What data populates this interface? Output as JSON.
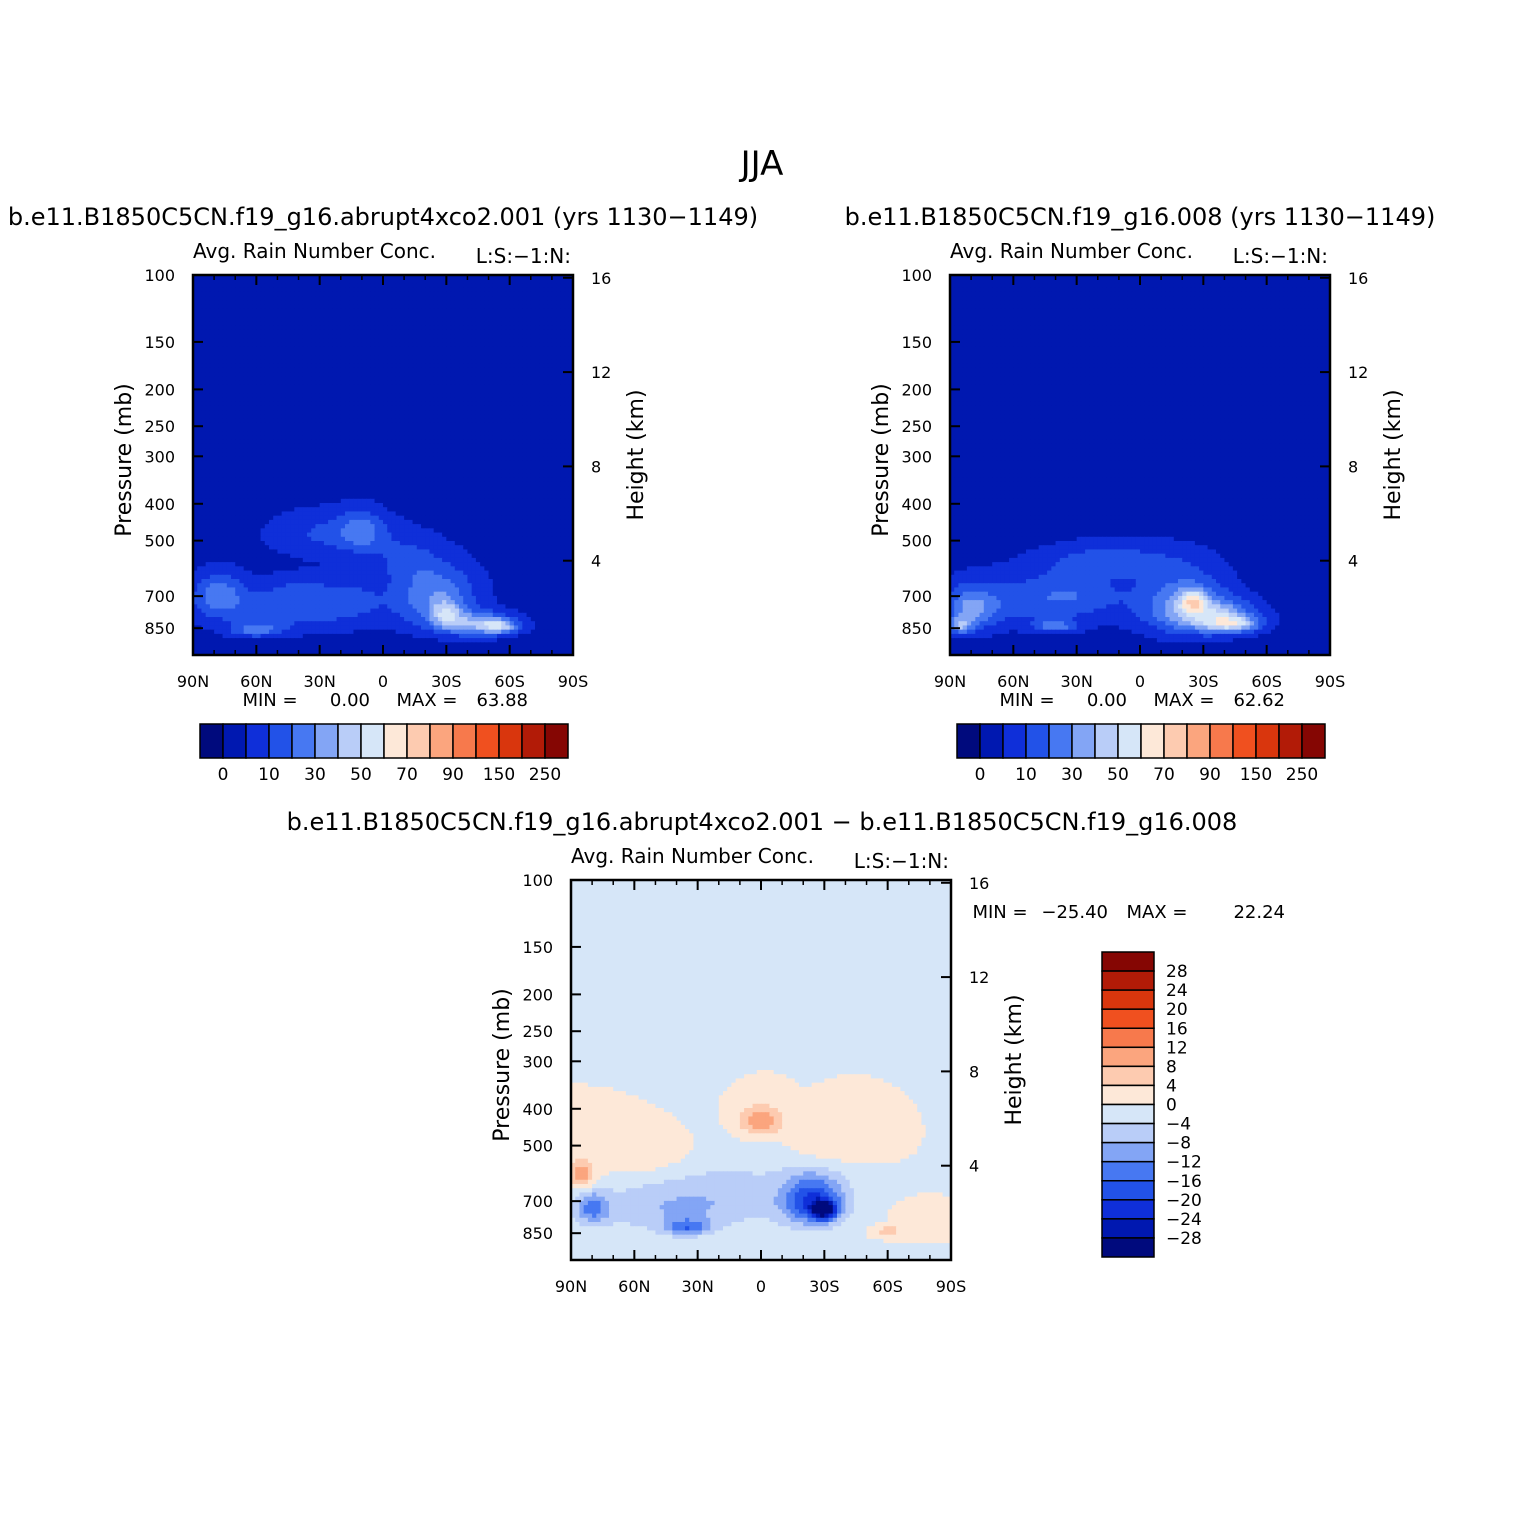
{
  "figure_title": "JJA",
  "chart_data": [
    {
      "type": "heatmap",
      "case_title": "b.e11.B1850C5CN.f19_g16.abrupt4xco2.001 (yrs 1130−1149)",
      "title": "Avg. Rain Number Conc.",
      "units_label": "L:S:−1:N:",
      "xlabel": "",
      "ylabel": "Pressure (mb)",
      "y2label": "Height (km)",
      "x_ticks": [
        "90N",
        "60N",
        "30N",
        "0",
        "30S",
        "60S",
        "90S"
      ],
      "y_ticks": [
        "100",
        "150",
        "200",
        "250",
        "300",
        "400",
        "500",
        "700",
        "850"
      ],
      "y2_ticks": [
        "16",
        "12",
        "8",
        "4"
      ],
      "stats": {
        "min_label": "MIN =",
        "min": "0.00",
        "max_label": "MAX =",
        "max": "63.88"
      },
      "colorbar": {
        "orientation": "horizontal",
        "tick_labels": [
          "0",
          "10",
          "30",
          "50",
          "70",
          "90",
          "150",
          "250"
        ],
        "colors": [
          "#000a7d",
          "#0018b0",
          "#0f2fd9",
          "#2252e8",
          "#4778f2",
          "#83a5f5",
          "#b9cdf8",
          "#d6e6f8",
          "#fde8d8",
          "#fdcbb0",
          "#fba57e",
          "#f7794c",
          "#f0501f",
          "#d9360d",
          "#b21b07",
          "#850603"
        ]
      },
      "background_level": 1,
      "blobs": [
        {
          "lat": 45,
          "p": 760,
          "lat_w": 40,
          "p_w": 110,
          "value": 2.0
        },
        {
          "lat": 78,
          "p": 690,
          "lat_w": 12,
          "p_w": 90,
          "value": 2.7
        },
        {
          "lat": 25,
          "p": 480,
          "lat_w": 30,
          "p_w": 70,
          "value": 1.7
        },
        {
          "lat": 10,
          "p": 470,
          "lat_w": 10,
          "p_w": 60,
          "value": 2.0
        },
        {
          "lat": 40,
          "p": 680,
          "lat_w": 15,
          "p_w": 70,
          "value": 0.9
        },
        {
          "lat": 15,
          "p": 700,
          "lat_w": 15,
          "p_w": 100,
          "value": 1.0
        },
        {
          "lat": -25,
          "p": 700,
          "lat_w": 20,
          "p_w": 140,
          "value": 3.3
        },
        {
          "lat": -45,
          "p": 830,
          "lat_w": 18,
          "p_w": 60,
          "value": 3.8
        },
        {
          "lat": -55,
          "p": 840,
          "lat_w": 8,
          "p_w": 35,
          "value": 3.4
        },
        {
          "lat": -30,
          "p": 780,
          "lat_w": 7,
          "p_w": 60,
          "value": 3.0
        },
        {
          "lat": 60,
          "p": 860,
          "lat_w": 12,
          "p_w": 35,
          "value": 2.5
        },
        {
          "lat": -10,
          "p": 560,
          "lat_w": 15,
          "p_w": 80,
          "value": 1.2
        }
      ]
    },
    {
      "type": "heatmap",
      "case_title": "b.e11.B1850C5CN.f19_g16.008 (yrs 1130−1149)",
      "title": "Avg. Rain Number Conc.",
      "units_label": "L:S:−1:N:",
      "xlabel": "",
      "ylabel": "Pressure (mb)",
      "y2label": "Height (km)",
      "x_ticks": [
        "90N",
        "60N",
        "30N",
        "0",
        "30S",
        "60S",
        "90S"
      ],
      "y_ticks": [
        "100",
        "150",
        "200",
        "250",
        "300",
        "400",
        "500",
        "700",
        "850"
      ],
      "y2_ticks": [
        "16",
        "12",
        "8",
        "4"
      ],
      "stats": {
        "min_label": "MIN =",
        "min": "0.00",
        "max_label": "MAX =",
        "max": "62.62"
      },
      "colorbar": {
        "orientation": "horizontal",
        "tick_labels": [
          "0",
          "10",
          "30",
          "50",
          "70",
          "90",
          "150",
          "250"
        ],
        "colors": [
          "#000a7d",
          "#0018b0",
          "#0f2fd9",
          "#2252e8",
          "#4778f2",
          "#83a5f5",
          "#b9cdf8",
          "#d6e6f8",
          "#fde8d8",
          "#fdcbb0",
          "#fba57e",
          "#f7794c",
          "#f0501f",
          "#d9360d",
          "#b21b07",
          "#850603"
        ]
      },
      "background_level": 1,
      "blobs": [
        {
          "lat": 50,
          "p": 720,
          "lat_w": 40,
          "p_w": 120,
          "value": 2.0
        },
        {
          "lat": 80,
          "p": 760,
          "lat_w": 12,
          "p_w": 100,
          "value": 3.0
        },
        {
          "lat": 15,
          "p": 560,
          "lat_w": 30,
          "p_w": 60,
          "value": 1.8
        },
        {
          "lat": 30,
          "p": 680,
          "lat_w": 20,
          "p_w": 90,
          "value": 1.0
        },
        {
          "lat": -20,
          "p": 720,
          "lat_w": 22,
          "p_w": 150,
          "value": 3.0
        },
        {
          "lat": -35,
          "p": 790,
          "lat_w": 20,
          "p_w": 80,
          "value": 4.0
        },
        {
          "lat": -45,
          "p": 830,
          "lat_w": 12,
          "p_w": 40,
          "value": 3.6
        },
        {
          "lat": -25,
          "p": 720,
          "lat_w": 6,
          "p_w": 50,
          "value": 3.5
        },
        {
          "lat": 40,
          "p": 840,
          "lat_w": 10,
          "p_w": 30,
          "value": 2.6
        },
        {
          "lat": 85,
          "p": 840,
          "lat_w": 5,
          "p_w": 40,
          "value": 3.2
        }
      ]
    },
    {
      "type": "heatmap",
      "case_title": "b.e11.B1850C5CN.f19_g16.abrupt4xco2.001 − b.e11.B1850C5CN.f19_g16.008",
      "title": "Avg. Rain Number Conc.",
      "units_label": "L:S:−1:N:",
      "xlabel": "",
      "ylabel": "Pressure (mb)",
      "y2label": "Height (km)",
      "x_ticks": [
        "90N",
        "60N",
        "30N",
        "0",
        "30S",
        "60S",
        "90S"
      ],
      "y_ticks": [
        "100",
        "150",
        "200",
        "250",
        "300",
        "400",
        "500",
        "700",
        "850"
      ],
      "y2_ticks": [
        "16",
        "12",
        "8",
        "4"
      ],
      "stats": {
        "min_label": "MIN =",
        "min": "−25.40",
        "max_label": "MAX =",
        "max": "22.24"
      },
      "colorbar": {
        "orientation": "vertical",
        "tick_labels": [
          "28",
          "24",
          "20",
          "16",
          "12",
          "8",
          "4",
          "0",
          "−4",
          "−8",
          "−12",
          "−16",
          "−20",
          "−24",
          "−28"
        ],
        "colors": [
          "#850603",
          "#b21b07",
          "#d9360d",
          "#f0501f",
          "#f7794c",
          "#fba57e",
          "#fdcbb0",
          "#fde8d8",
          "#d6e6f8",
          "#b9cdf8",
          "#83a5f5",
          "#4778f2",
          "#2252e8",
          "#0f2fd9",
          "#0018b0",
          "#000a7d"
        ]
      },
      "background_level": 8,
      "blobs": [
        {
          "lat": 40,
          "p": 730,
          "lat_w": 40,
          "p_w": 120,
          "value": -2.0
        },
        {
          "lat": 80,
          "p": 730,
          "lat_w": 8,
          "p_w": 70,
          "value": -3.0
        },
        {
          "lat": 35,
          "p": 820,
          "lat_w": 10,
          "p_w": 40,
          "value": -3.0
        },
        {
          "lat": -25,
          "p": 700,
          "lat_w": 15,
          "p_w": 110,
          "value": -5.0
        },
        {
          "lat": -30,
          "p": 740,
          "lat_w": 6,
          "p_w": 40,
          "value": -5.5
        },
        {
          "lat": 10,
          "p": 620,
          "lat_w": 30,
          "p_w": 120,
          "value": -0.8
        },
        {
          "lat": 0,
          "p": 430,
          "lat_w": 10,
          "p_w": 40,
          "value": 3.0
        },
        {
          "lat": 85,
          "p": 600,
          "lat_w": 6,
          "p_w": 50,
          "value": 2.8
        },
        {
          "lat": 60,
          "p": 530,
          "lat_w": 25,
          "p_w": 60,
          "value": 1.0
        },
        {
          "lat": -60,
          "p": 840,
          "lat_w": 6,
          "p_w": 20,
          "value": 2.2
        },
        {
          "lat": -30,
          "p": 500,
          "lat_w": 15,
          "p_w": 60,
          "value": 1.0
        },
        {
          "lat": -75,
          "p": 780,
          "lat_w": 8,
          "p_w": 40,
          "value": 1.0
        }
      ]
    }
  ]
}
